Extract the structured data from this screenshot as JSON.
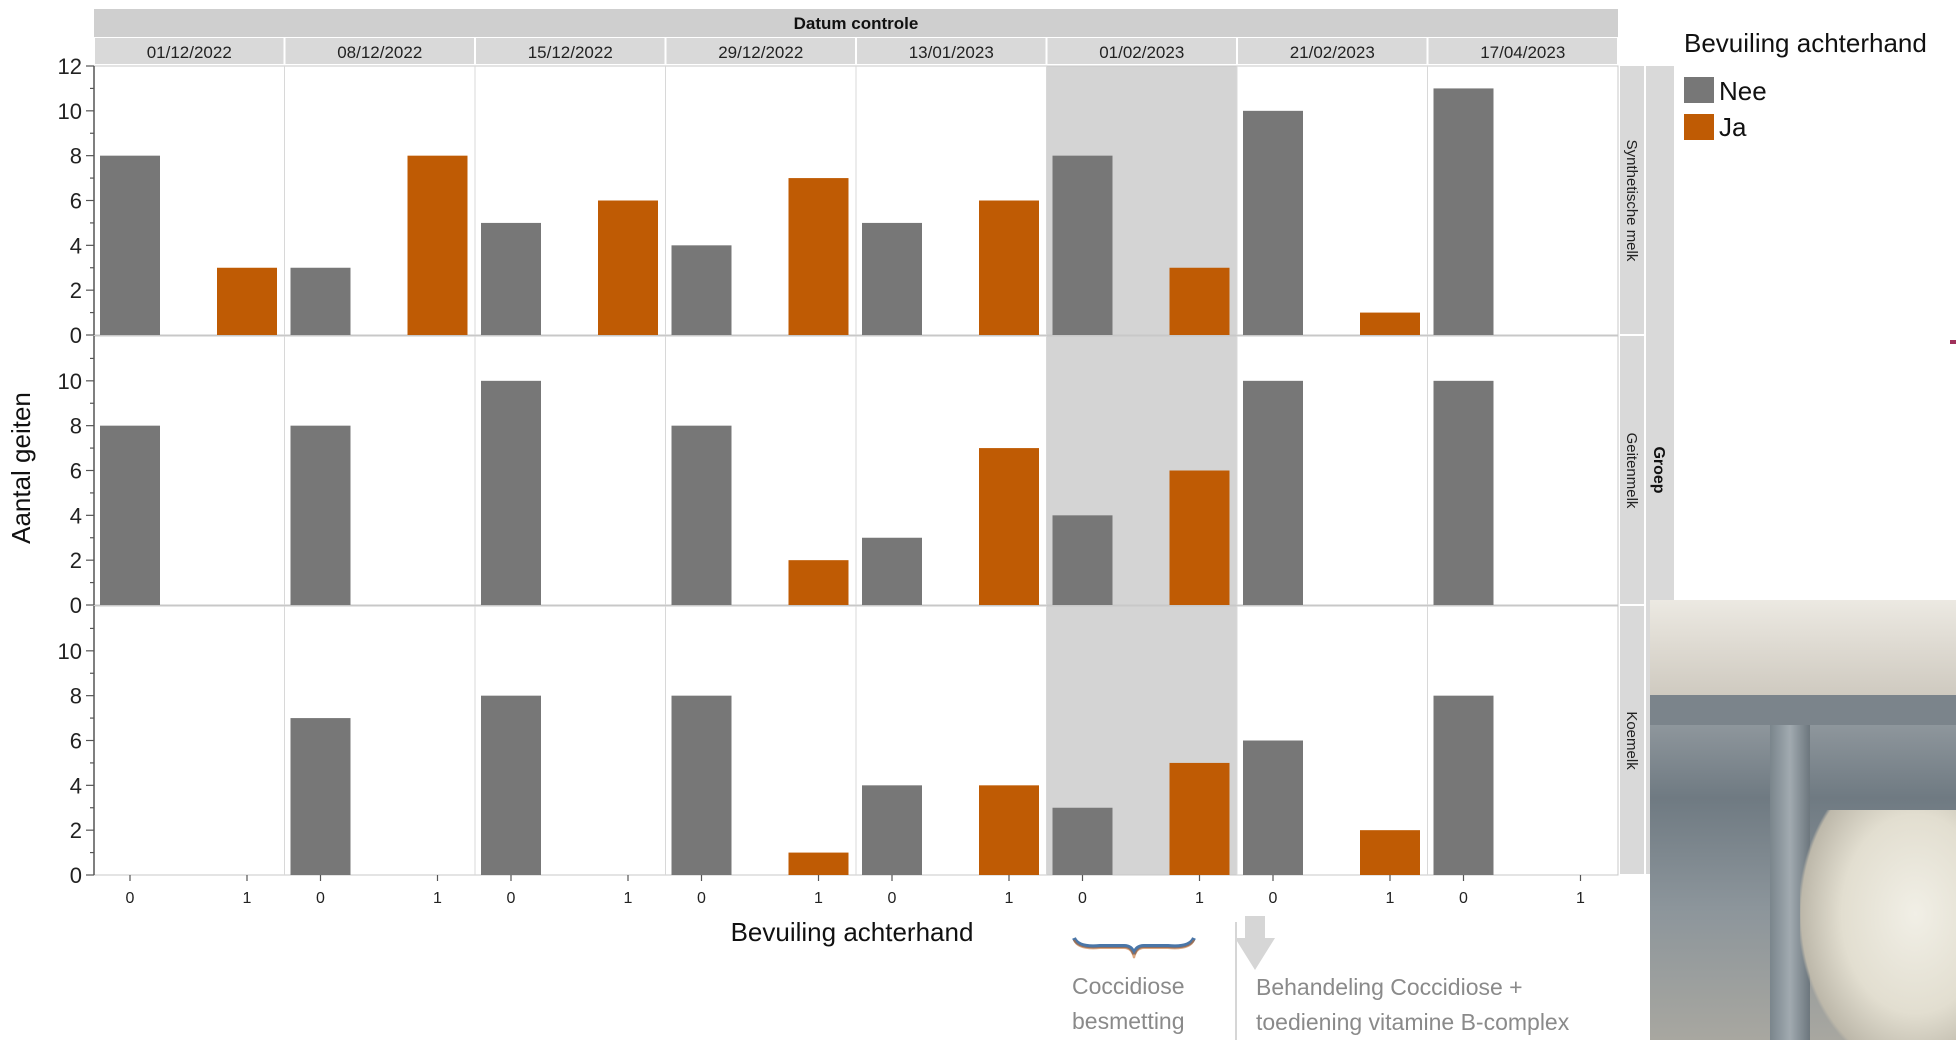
{
  "chart_data": {
    "type": "bar",
    "facet_header": "Datum controle",
    "dates": [
      "01/12/2022",
      "08/12/2022",
      "15/12/2022",
      "29/12/2022",
      "13/01/2023",
      "01/02/2023",
      "21/02/2023",
      "17/04/2023"
    ],
    "x_categories": [
      "0",
      "1"
    ],
    "group_header": "Groep",
    "groups": [
      {
        "name": "Synthetische melk",
        "nee": [
          8,
          3,
          5,
          4,
          5,
          8,
          10,
          11
        ],
        "ja": [
          3,
          8,
          6,
          7,
          6,
          3,
          1,
          0
        ]
      },
      {
        "name": "Geitenmelk",
        "nee": [
          8,
          8,
          10,
          8,
          3,
          4,
          10,
          10
        ],
        "ja": [
          0,
          0,
          0,
          2,
          7,
          6,
          0,
          0
        ]
      },
      {
        "name": "Koemelk",
        "nee": [
          0,
          7,
          8,
          8,
          4,
          3,
          6,
          8
        ],
        "ja": [
          0,
          0,
          0,
          1,
          4,
          5,
          2,
          0
        ]
      }
    ],
    "ylim": [
      0,
      12
    ],
    "yticks_top": [
      0,
      2,
      4,
      6,
      8,
      10,
      12
    ],
    "yticks": [
      0,
      2,
      4,
      6,
      8,
      10
    ],
    "xlabel": "Bevuiling achterhand",
    "ylabel": "Aantal geiten",
    "legend": {
      "title": "Bevuiling achterhand",
      "placement": "top-right",
      "entries": [
        {
          "label": "Nee",
          "color": "#777777"
        },
        {
          "label": "Ja",
          "color": "#BF5B04"
        }
      ]
    },
    "highlighted_date": "01/02/2023",
    "annotations": {
      "infection_line1": "Coccidiose",
      "infection_line2": "besmetting",
      "treatment_line1": "Behandeling Coccidiose +",
      "treatment_line2": "toediening vitamine B-complex"
    },
    "grid": false
  },
  "colors": {
    "nee": "#777777",
    "ja": "#BF5B04",
    "highlight": "#D4D4D4",
    "header_bg": "#D9D9D9",
    "annotation": "#8A8A8A"
  }
}
